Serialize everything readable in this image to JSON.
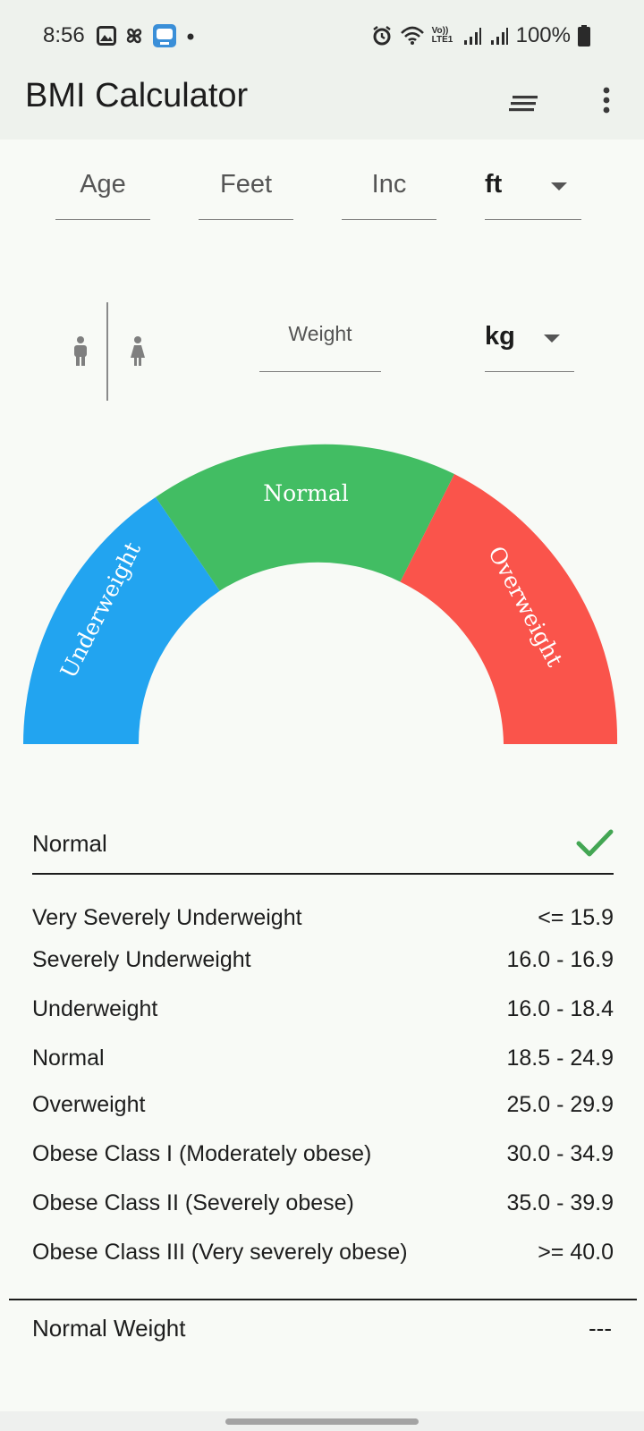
{
  "status_bar": {
    "time": "8:56",
    "battery": "100%",
    "network_label": "Vo)) LTE1",
    "left_icons": [
      "image-icon",
      "pinwheel-icon",
      "app-badge-icon",
      "dot-icon"
    ],
    "right_icons": [
      "alarm-icon",
      "wifi-icon",
      "signal-icon",
      "signal-icon",
      "battery-icon"
    ]
  },
  "app_bar": {
    "title": "BMI Calculator",
    "actions": [
      "filter-icon",
      "more-vert-icon"
    ]
  },
  "inputs": {
    "age_placeholder": "Age",
    "feet_placeholder": "Feet",
    "inch_placeholder": "Inc",
    "height_unit": "ft",
    "weight_placeholder": "Weight",
    "weight_unit": "kg"
  },
  "gender": {
    "options": [
      "male-icon",
      "female-icon"
    ]
  },
  "gauge": {
    "segments": [
      {
        "label": "Underweight",
        "color": "#22a4f0"
      },
      {
        "label": "Normal",
        "color": "#42bd63"
      },
      {
        "label": "Overweight",
        "color": "#fa544b"
      }
    ]
  },
  "result": {
    "category": "Normal",
    "status_icon": "check-icon",
    "check_color": "#43a653"
  },
  "categories": [
    {
      "label": "Very Severely Underweight",
      "range": "<= 15.9"
    },
    {
      "label": "Severely Underweight",
      "range": "16.0 - 16.9"
    },
    {
      "label": "Underweight",
      "range": "16.0 - 18.4"
    },
    {
      "label": "Normal",
      "range": "18.5 - 24.9"
    },
    {
      "label": "Overweight",
      "range": "25.0 - 29.9"
    },
    {
      "label": "Obese Class I (Moderately obese)",
      "range": "30.0 - 34.9"
    },
    {
      "label": "Obese Class II (Severely obese)",
      "range": "35.0 - 39.9"
    },
    {
      "label": "Obese Class III (Very severely obese)",
      "range": ">= 40.0"
    }
  ],
  "normal_weight": {
    "label": "Normal Weight",
    "value": "---"
  }
}
